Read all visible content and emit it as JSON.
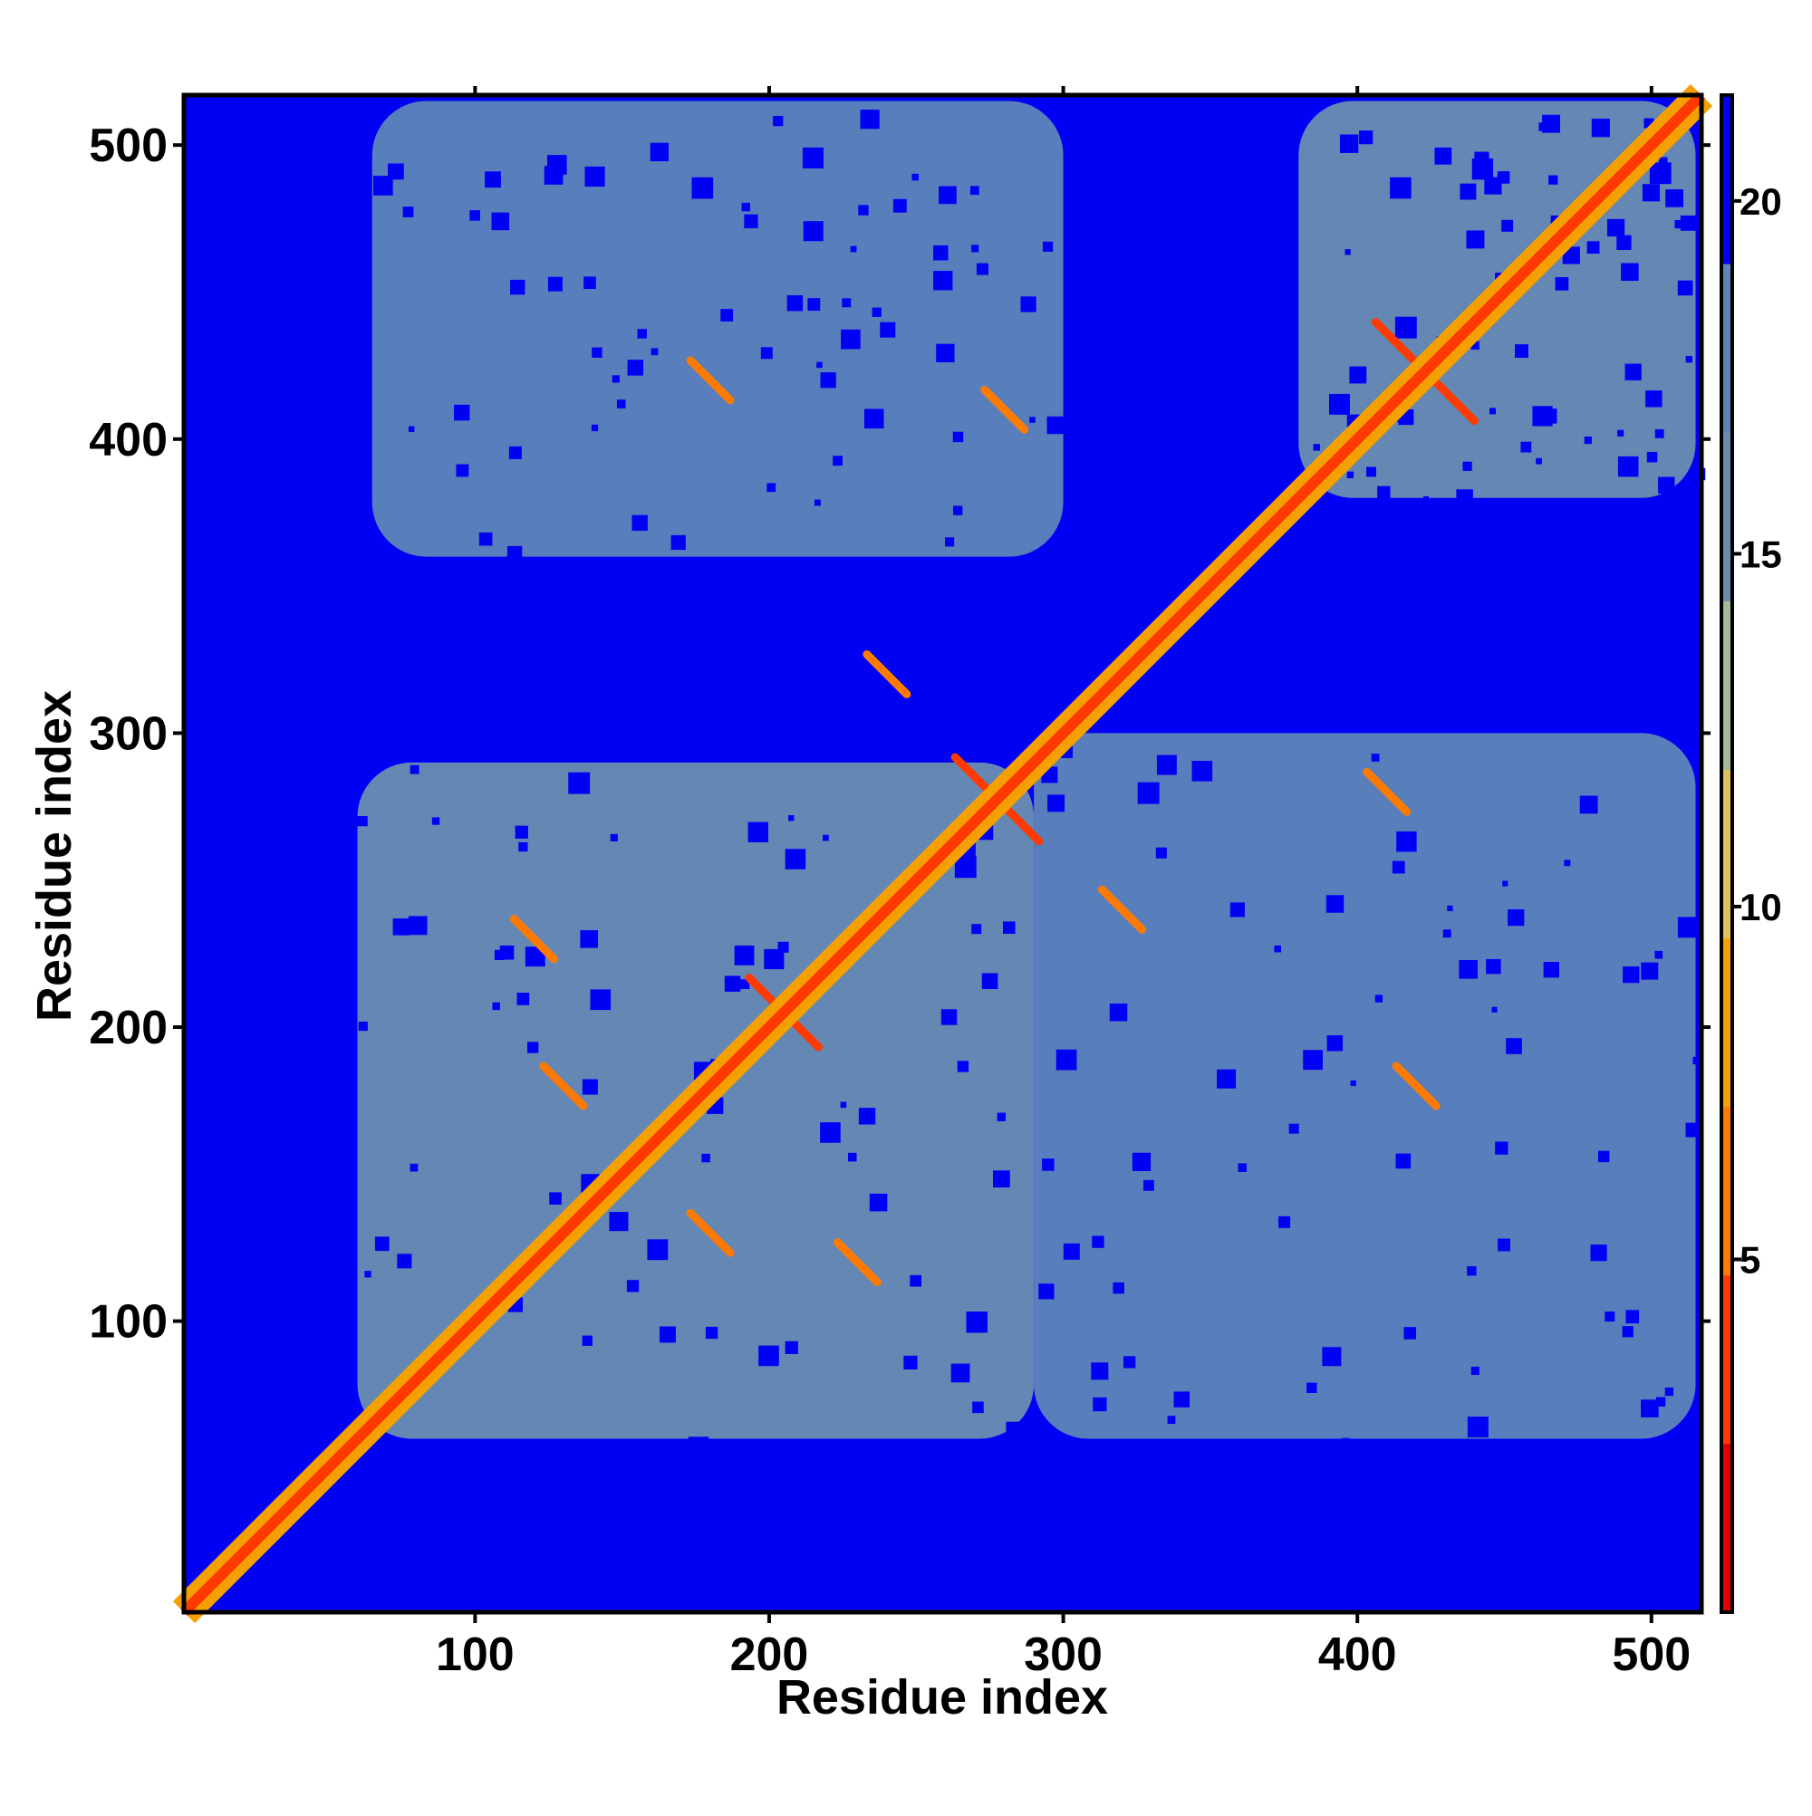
{
  "chart_data": {
    "type": "heatmap",
    "title": "",
    "xlabel": "Residue index",
    "ylabel": "Residue index",
    "xlim": [
      1,
      517
    ],
    "ylim": [
      1,
      517
    ],
    "x_ticks": [
      100,
      200,
      300,
      400,
      500
    ],
    "y_ticks": [
      100,
      200,
      300,
      400,
      500
    ],
    "colorbar": {
      "ticks": [
        5,
        10,
        15,
        20
      ],
      "range": [
        0,
        21.5
      ],
      "colors": [
        "#e10000",
        "#ff3a00",
        "#ff7a00",
        "#f4a000",
        "#e0c060",
        "#a7b896",
        "#6a8eb0",
        "#5d85b8",
        "#0000f5"
      ]
    },
    "matrix_summary": {
      "size": 517,
      "diagonal_value": 2.5,
      "background_value": 21,
      "contact_regions": [
        {
          "x": [
            60,
            290
          ],
          "y": [
            60,
            290
          ],
          "value": 16
        },
        {
          "x": [
            380,
            515
          ],
          "y": [
            380,
            515
          ],
          "value": 16
        },
        {
          "x": [
            65,
            300
          ],
          "y": [
            360,
            515
          ],
          "value": 17
        },
        {
          "x": [
            290,
            515
          ],
          "y": [
            60,
            300
          ],
          "value": 17
        }
      ],
      "notable_contacts": [
        {
          "x": 413,
          "y": 433,
          "value": 4
        },
        {
          "x": 433,
          "y": 413,
          "value": 4
        },
        {
          "x": 270,
          "y": 285,
          "value": 4
        },
        {
          "x": 285,
          "y": 270,
          "value": 4
        },
        {
          "x": 200,
          "y": 210,
          "value": 4
        },
        {
          "x": 210,
          "y": 200,
          "value": 4
        },
        {
          "x": 240,
          "y": 320,
          "value": 5
        },
        {
          "x": 320,
          "y": 240,
          "value": 5
        },
        {
          "x": 280,
          "y": 410,
          "value": 6
        },
        {
          "x": 410,
          "y": 280,
          "value": 6
        },
        {
          "x": 130,
          "y": 180,
          "value": 6
        },
        {
          "x": 180,
          "y": 130,
          "value": 6
        },
        {
          "x": 120,
          "y": 230,
          "value": 7
        },
        {
          "x": 230,
          "y": 120,
          "value": 7
        },
        {
          "x": 420,
          "y": 180,
          "value": 7
        },
        {
          "x": 180,
          "y": 420,
          "value": 7
        }
      ]
    }
  }
}
